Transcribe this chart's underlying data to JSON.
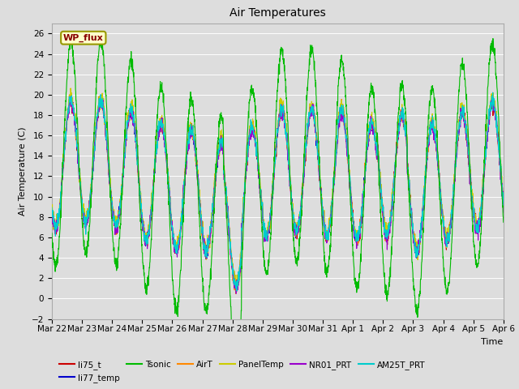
{
  "title": "Air Temperatures",
  "xlabel": "Time",
  "ylabel": "Air Temperature (C)",
  "ylim": [
    -2,
    27
  ],
  "yticks": [
    -2,
    0,
    2,
    4,
    6,
    8,
    10,
    12,
    14,
    16,
    18,
    20,
    22,
    24,
    26
  ],
  "series": {
    "li75_t": {
      "color": "#cc0000",
      "lw": 0.8
    },
    "li77_temp": {
      "color": "#0000cc",
      "lw": 0.8
    },
    "Tsonic": {
      "color": "#00bb00",
      "lw": 0.8
    },
    "AirT": {
      "color": "#ff8800",
      "lw": 0.8
    },
    "PanelTemp": {
      "color": "#cccc00",
      "lw": 0.8
    },
    "NR01_PRT": {
      "color": "#9900cc",
      "lw": 0.8
    },
    "AM25T_PRT": {
      "color": "#00cccc",
      "lw": 0.8
    }
  },
  "legend_label": "WP_flux",
  "legend_bg": "#ffffcc",
  "legend_border": "#999900",
  "fig_facecolor": "#dddddd",
  "ax_facecolor": "#dddddd",
  "n_days": 15,
  "tick_labels": [
    "Mar 22",
    "Mar 23",
    "Mar 24",
    "Mar 25",
    "Mar 26",
    "Mar 27",
    "Mar 28",
    "Mar 29",
    "Mar 30",
    "Mar 31",
    "Apr 1",
    "Apr 2",
    "Apr 3",
    "Apr 4",
    "Apr 5",
    "Apr 6"
  ]
}
